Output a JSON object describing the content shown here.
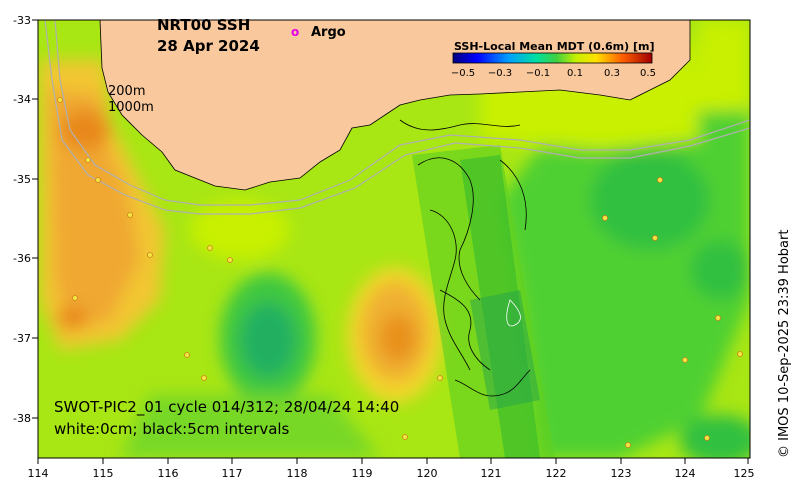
{
  "map": {
    "title_line1": "NRT00 SSH",
    "title_line2": "28 Apr 2024",
    "legend_marker": "o",
    "legend_label": "Argo",
    "isobath_label_1": "200m",
    "isobath_label_2": "1000m",
    "info_line1": "SWOT-PIC2_01 cycle 014/312; 28/04/24 14:40",
    "info_line2": "white:0cm; black:5cm intervals",
    "copyright": "© IMOS 10-Sep-2025 23:39 Hobart",
    "land_color": "#f9c89c",
    "argo_color": "#e800e8"
  },
  "axes": {
    "x_ticks": [
      "114",
      "115",
      "116",
      "117",
      "118",
      "119",
      "120",
      "121",
      "122",
      "123",
      "124",
      "125"
    ],
    "y_ticks": [
      "-33",
      "-34",
      "-35",
      "-36",
      "-37",
      "-38"
    ]
  },
  "colorbar": {
    "title": "SSH-Local Mean MDT (0.6m) [m]",
    "ticks": [
      "−0.5",
      "−0.3",
      "−0.1",
      "0.1",
      "0.3",
      "0.5"
    ]
  }
}
